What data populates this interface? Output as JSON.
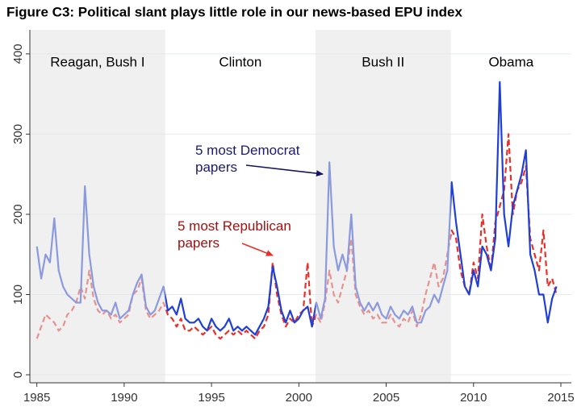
{
  "chart_data": {
    "type": "line",
    "title": "Figure C3: Political slant plays little role in our news-based EPU index",
    "x": [
      1985,
      1985.25,
      1985.5,
      1985.75,
      1986,
      1986.25,
      1986.5,
      1986.75,
      1987,
      1987.25,
      1987.5,
      1987.75,
      1988,
      1988.25,
      1988.5,
      1988.75,
      1989,
      1989.25,
      1989.5,
      1989.75,
      1990,
      1990.25,
      1990.5,
      1990.75,
      1991,
      1991.25,
      1991.5,
      1991.75,
      1992,
      1992.25,
      1992.5,
      1992.75,
      1993,
      1993.25,
      1993.5,
      1993.75,
      1994,
      1994.25,
      1994.5,
      1994.75,
      1995,
      1995.25,
      1995.5,
      1995.75,
      1996,
      1996.25,
      1996.5,
      1996.75,
      1997,
      1997.25,
      1997.5,
      1997.75,
      1998,
      1998.25,
      1998.5,
      1998.75,
      1999,
      1999.25,
      1999.5,
      1999.75,
      2000,
      2000.25,
      2000.5,
      2000.75,
      2001,
      2001.25,
      2001.5,
      2001.75,
      2002,
      2002.25,
      2002.5,
      2002.75,
      2003,
      2003.25,
      2003.5,
      2003.75,
      2004,
      2004.25,
      2004.5,
      2004.75,
      2005,
      2005.25,
      2005.5,
      2005.75,
      2006,
      2006.25,
      2006.5,
      2006.75,
      2007,
      2007.25,
      2007.5,
      2007.75,
      2008,
      2008.25,
      2008.5,
      2008.75,
      2009,
      2009.25,
      2009.5,
      2009.75,
      2010,
      2010.25,
      2010.5,
      2010.75,
      2011,
      2011.25,
      2011.5,
      2011.75,
      2012,
      2012.25,
      2012.5,
      2012.75,
      2013,
      2013.25,
      2013.5,
      2013.75,
      2014,
      2014.25,
      2014.5,
      2014.75
    ],
    "series": [
      {
        "name": "5 most Democrat papers",
        "color": "#1f3fd6",
        "label_color": "#1a1a6e",
        "arrow_color": "#14145f",
        "dash": false,
        "values": [
          160,
          120,
          150,
          140,
          195,
          130,
          110,
          100,
          95,
          90,
          90,
          235,
          150,
          110,
          90,
          80,
          80,
          75,
          90,
          70,
          75,
          80,
          100,
          115,
          125,
          85,
          75,
          80,
          95,
          110,
          80,
          85,
          75,
          95,
          70,
          65,
          65,
          70,
          60,
          55,
          70,
          60,
          55,
          60,
          70,
          55,
          60,
          55,
          60,
          55,
          50,
          60,
          70,
          85,
          135,
          110,
          80,
          65,
          80,
          65,
          70,
          80,
          85,
          60,
          90,
          70,
          95,
          265,
          160,
          130,
          150,
          130,
          200,
          110,
          90,
          80,
          90,
          80,
          90,
          75,
          70,
          85,
          75,
          70,
          80,
          75,
          85,
          65,
          65,
          80,
          85,
          100,
          90,
          110,
          130,
          240,
          190,
          150,
          110,
          100,
          130,
          110,
          160,
          150,
          130,
          170,
          365,
          200,
          160,
          210,
          230,
          250,
          280,
          150,
          130,
          100,
          100,
          65,
          95,
          110
        ]
      },
      {
        "name": "5 most Republican papers",
        "color": "#e8302a",
        "label_color": "#a01010",
        "arrow_color": "#e8302a",
        "dash": true,
        "values": [
          45,
          60,
          75,
          70,
          65,
          55,
          60,
          75,
          80,
          90,
          110,
          95,
          130,
          95,
          80,
          75,
          80,
          70,
          75,
          65,
          70,
          75,
          100,
          105,
          120,
          80,
          70,
          75,
          80,
          90,
          75,
          70,
          60,
          70,
          55,
          55,
          60,
          55,
          50,
          55,
          60,
          50,
          45,
          50,
          55,
          50,
          55,
          50,
          55,
          50,
          45,
          55,
          60,
          75,
          140,
          100,
          75,
          60,
          70,
          65,
          75,
          80,
          140,
          60,
          75,
          65,
          90,
          130,
          100,
          90,
          110,
          130,
          170,
          100,
          85,
          75,
          80,
          70,
          75,
          65,
          65,
          75,
          65,
          60,
          70,
          65,
          80,
          60,
          75,
          100,
          120,
          140,
          110,
          120,
          150,
          180,
          170,
          130,
          110,
          100,
          140,
          120,
          200,
          160,
          130,
          190,
          210,
          230,
          300,
          200,
          230,
          240,
          260,
          170,
          150,
          130,
          180,
          110,
          120,
          100
        ]
      }
    ],
    "periods": [
      {
        "label": "Reagan, Bush I",
        "start": 1984.6,
        "end": 1992.35,
        "shaded": true
      },
      {
        "label": "Clinton",
        "start": 1992.35,
        "end": 2000.95,
        "shaded": false
      },
      {
        "label": "Bush II",
        "start": 2000.95,
        "end": 2008.7,
        "shaded": true
      },
      {
        "label": "Obama",
        "start": 2008.7,
        "end": 2015.6,
        "shaded": false
      }
    ],
    "xlim": [
      1984.6,
      2015.6
    ],
    "xticks": [
      1985,
      1990,
      1995,
      2000,
      2005,
      2010,
      2015
    ],
    "ylim": [
      -10,
      430
    ],
    "yticks": [
      0,
      100,
      200,
      300,
      400
    ],
    "grid": true
  }
}
